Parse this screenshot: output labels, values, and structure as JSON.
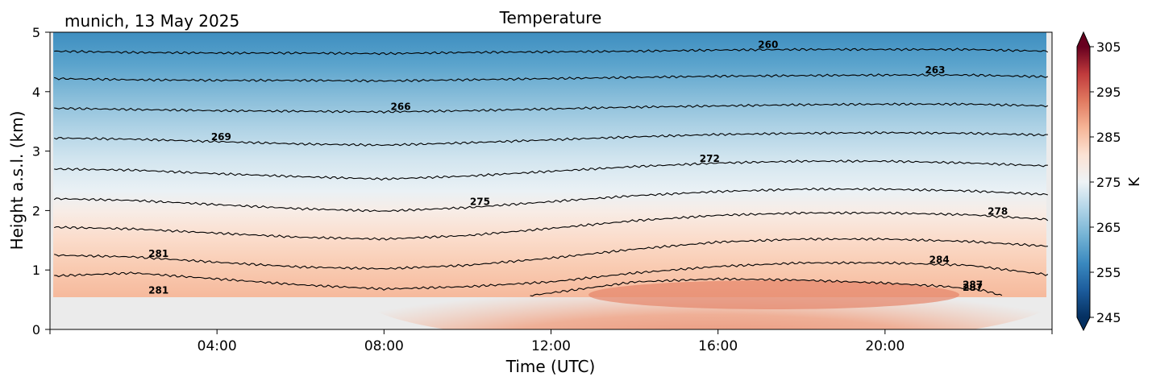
{
  "chart_data": {
    "type": "heatmap",
    "title": "Temperature",
    "subtitle": "munich, 13 May 2025",
    "xlabel": "Time (UTC)",
    "ylabel": "Height a.s.l. (km)",
    "x_unit": "hours UTC",
    "xlim": [
      0,
      24
    ],
    "ylim": [
      0,
      5
    ],
    "x_ticks": [
      4,
      8,
      12,
      16,
      20
    ],
    "x_tick_labels": [
      "04:00",
      "08:00",
      "12:00",
      "16:00",
      "20:00"
    ],
    "y_ticks": [
      0,
      1,
      2,
      3,
      4,
      5
    ],
    "y_tick_labels": [
      "0",
      "1",
      "2",
      "3",
      "4",
      "5"
    ],
    "data_bottom_km": 0.55,
    "colorbar": {
      "label": "K",
      "range": [
        245,
        305
      ],
      "ticks": [
        245,
        255,
        265,
        275,
        285,
        295,
        305
      ],
      "tick_labels": [
        "245",
        "255",
        "265",
        "275",
        "285",
        "295",
        "305"
      ],
      "extend": "both"
    },
    "contours": [
      {
        "level": 260,
        "label": "260",
        "label_x": 17.2,
        "points": [
          [
            0.1,
            4.68
          ],
          [
            2,
            4.66
          ],
          [
            4,
            4.65
          ],
          [
            6,
            4.65
          ],
          [
            8,
            4.64
          ],
          [
            10,
            4.66
          ],
          [
            12,
            4.67
          ],
          [
            14,
            4.68
          ],
          [
            16,
            4.7
          ],
          [
            18,
            4.71
          ],
          [
            20,
            4.71
          ],
          [
            22,
            4.71
          ],
          [
            23.9,
            4.68
          ]
        ]
      },
      {
        "level": 263,
        "label": "263",
        "label_x": 21.2,
        "points": [
          [
            0.1,
            4.22
          ],
          [
            2,
            4.2
          ],
          [
            4,
            4.19
          ],
          [
            6,
            4.19
          ],
          [
            8,
            4.18
          ],
          [
            10,
            4.2
          ],
          [
            12,
            4.22
          ],
          [
            14,
            4.24
          ],
          [
            16,
            4.26
          ],
          [
            18,
            4.27
          ],
          [
            20,
            4.28
          ],
          [
            22,
            4.28
          ],
          [
            23.9,
            4.25
          ]
        ]
      },
      {
        "level": 266,
        "label": "266",
        "label_x": 8.4,
        "points": [
          [
            0.1,
            3.72
          ],
          [
            2,
            3.7
          ],
          [
            4,
            3.68
          ],
          [
            6,
            3.67
          ],
          [
            8,
            3.66
          ],
          [
            10,
            3.68
          ],
          [
            12,
            3.71
          ],
          [
            14,
            3.74
          ],
          [
            16,
            3.76
          ],
          [
            18,
            3.78
          ],
          [
            20,
            3.79
          ],
          [
            22,
            3.79
          ],
          [
            23.9,
            3.76
          ]
        ]
      },
      {
        "level": 269,
        "label": "269",
        "label_x": 4.1,
        "points": [
          [
            0.1,
            3.22
          ],
          [
            2,
            3.2
          ],
          [
            4,
            3.16
          ],
          [
            6,
            3.12
          ],
          [
            8,
            3.1
          ],
          [
            10,
            3.14
          ],
          [
            12,
            3.19
          ],
          [
            14,
            3.24
          ],
          [
            16,
            3.28
          ],
          [
            18,
            3.3
          ],
          [
            20,
            3.31
          ],
          [
            22,
            3.3
          ],
          [
            23.9,
            3.27
          ]
        ]
      },
      {
        "level": 272,
        "label": "272",
        "label_x": 15.8,
        "points": [
          [
            0.1,
            2.7
          ],
          [
            2,
            2.68
          ],
          [
            4,
            2.62
          ],
          [
            6,
            2.57
          ],
          [
            8,
            2.53
          ],
          [
            10,
            2.58
          ],
          [
            12,
            2.66
          ],
          [
            14,
            2.74
          ],
          [
            16,
            2.8
          ],
          [
            18,
            2.83
          ],
          [
            20,
            2.83
          ],
          [
            22,
            2.8
          ],
          [
            23.9,
            2.75
          ]
        ]
      },
      {
        "level": 275,
        "label": "275",
        "label_x": 10.3,
        "points": [
          [
            0.1,
            2.2
          ],
          [
            2,
            2.17
          ],
          [
            4,
            2.1
          ],
          [
            6,
            2.03
          ],
          [
            8,
            1.99
          ],
          [
            10,
            2.05
          ],
          [
            12,
            2.15
          ],
          [
            14,
            2.25
          ],
          [
            16,
            2.32
          ],
          [
            18,
            2.36
          ],
          [
            20,
            2.36
          ],
          [
            22,
            2.33
          ],
          [
            23.9,
            2.27
          ]
        ]
      },
      {
        "level": 278,
        "label": "278",
        "label_x": 22.7,
        "points": [
          [
            0.1,
            1.72
          ],
          [
            2,
            1.69
          ],
          [
            4,
            1.62
          ],
          [
            6,
            1.55
          ],
          [
            8,
            1.52
          ],
          [
            10,
            1.58
          ],
          [
            12,
            1.7
          ],
          [
            14,
            1.83
          ],
          [
            16,
            1.92
          ],
          [
            18,
            1.96
          ],
          [
            20,
            1.96
          ],
          [
            22,
            1.93
          ],
          [
            23.9,
            1.85
          ]
        ]
      },
      {
        "level": 281,
        "label": "281",
        "label_x": 2.6,
        "points": [
          [
            0.1,
            1.25
          ],
          [
            2,
            1.22
          ],
          [
            4,
            1.13
          ],
          [
            6,
            1.05
          ],
          [
            8,
            1.02
          ],
          [
            10,
            1.08
          ],
          [
            12,
            1.2
          ],
          [
            14,
            1.35
          ],
          [
            16,
            1.47
          ],
          [
            18,
            1.52
          ],
          [
            20,
            1.52
          ],
          [
            22,
            1.48
          ],
          [
            23.9,
            1.4
          ]
        ]
      },
      {
        "level": 284,
        "label": "284",
        "label_x": 21.3,
        "points": [
          [
            0.1,
            0.9
          ],
          [
            2,
            0.95
          ],
          [
            4,
            0.85
          ],
          [
            6,
            0.75
          ],
          [
            8,
            0.68
          ],
          [
            10,
            0.72
          ],
          [
            12,
            0.8
          ],
          [
            14,
            0.95
          ],
          [
            16,
            1.06
          ],
          [
            18,
            1.12
          ],
          [
            20,
            1.12
          ],
          [
            22,
            1.08
          ],
          [
            23.9,
            0.92
          ]
        ]
      },
      {
        "level": 287,
        "label": "287",
        "label_x": 22.1,
        "points": [
          [
            11.5,
            0.57
          ],
          [
            12.5,
            0.66
          ],
          [
            14,
            0.8
          ],
          [
            16,
            0.85
          ],
          [
            18,
            0.83
          ],
          [
            20,
            0.78
          ],
          [
            21.5,
            0.72
          ],
          [
            22.4,
            0.65
          ],
          [
            22.8,
            0.57
          ]
        ]
      }
    ],
    "extra_labels": [
      {
        "label": "281",
        "x": 2.6,
        "y": 0.6
      },
      {
        "label": "287",
        "x": 22.1,
        "y": 0.65
      }
    ]
  },
  "colors": {
    "axis": "#000000",
    "nodata": "#ebebeb",
    "contour": "#000000",
    "cmap": [
      "#053061",
      "#134c87",
      "#2166ac",
      "#327cbb",
      "#4393c3",
      "#6eaed1",
      "#92c5de",
      "#b2d5e7",
      "#d1e5f0",
      "#e3eef4",
      "#f7f7f7",
      "#faeae1",
      "#fddbc7",
      "#f8bfa4",
      "#f4a582",
      "#e58267",
      "#d6604d",
      "#c13639",
      "#b2182b",
      "#8a0b24",
      "#67001f"
    ]
  }
}
